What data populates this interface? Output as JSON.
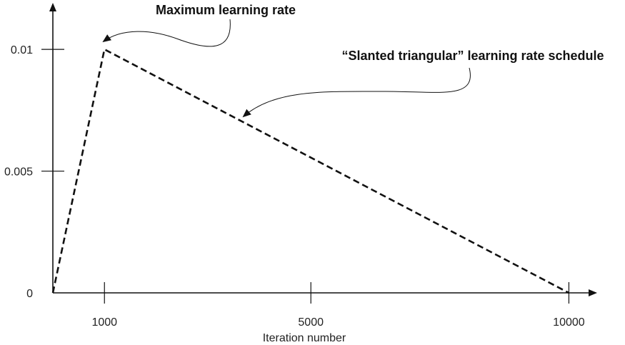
{
  "chart_data": {
    "type": "line",
    "title": "",
    "xlabel": "Iteration number",
    "ylabel": "",
    "x_ticks": [
      {
        "value": 1000,
        "label": "1000"
      },
      {
        "value": 5000,
        "label": "5000"
      },
      {
        "value": 10000,
        "label": "10000"
      }
    ],
    "y_ticks": [
      {
        "value": 0,
        "label": "0"
      },
      {
        "value": 0.005,
        "label": "0.005"
      },
      {
        "value": 0.01,
        "label": "0.01"
      }
    ],
    "xlim": [
      0,
      10700
    ],
    "ylim": [
      0,
      0.0115
    ],
    "grid": false,
    "series": [
      {
        "x": [
          0,
          1000,
          10000
        ],
        "y": [
          0,
          0.01,
          0
        ],
        "line_style": "dashed",
        "color": "#111111"
      }
    ],
    "annotations": [
      {
        "text": "Maximum learning rate",
        "points_to": {
          "x": 1000,
          "y": 0.01
        }
      },
      {
        "text": "“Slanted triangular” learning rate schedule",
        "points_to": {
          "x": 3800,
          "y": 0.0071
        }
      }
    ]
  }
}
